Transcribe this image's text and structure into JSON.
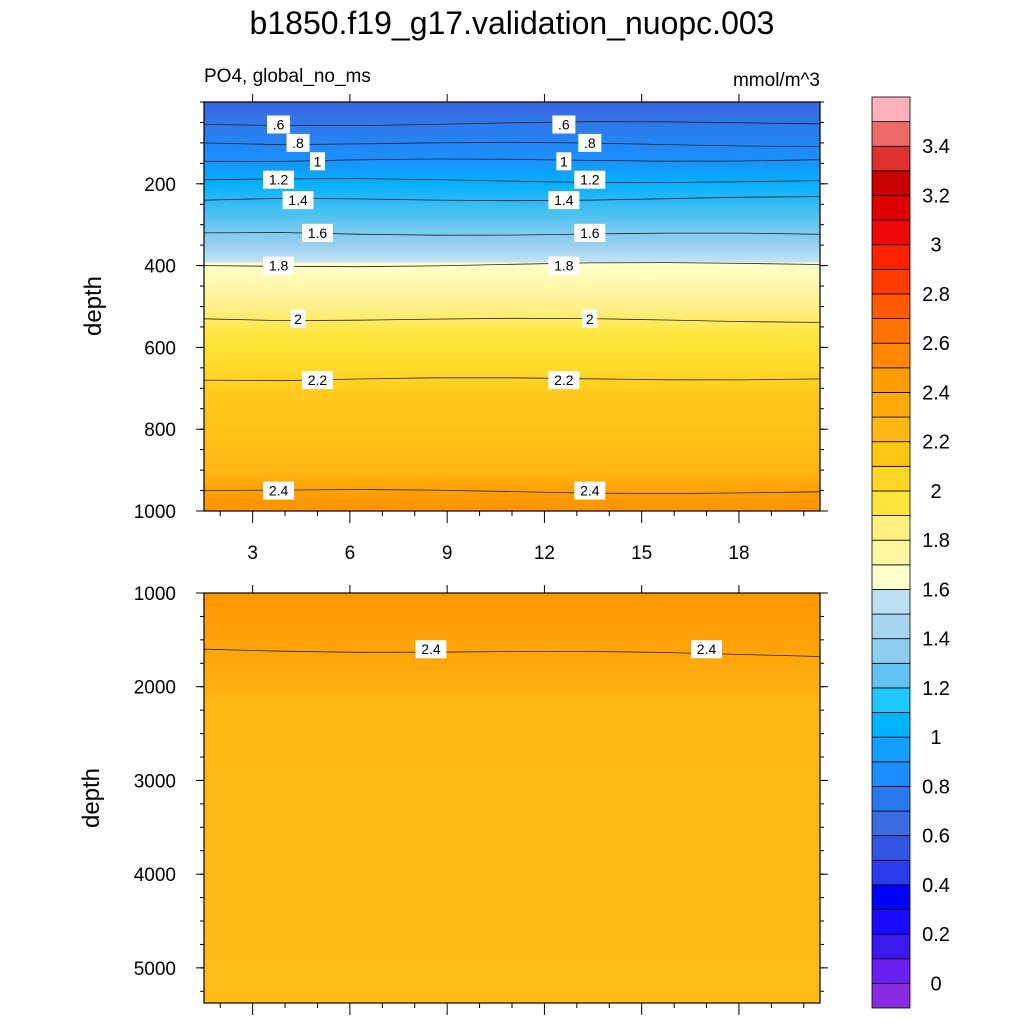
{
  "chart_data": {
    "type": "heatmap",
    "title": "b1850.f19_g17.validation_nuopc.003",
    "subtitle_left": "PO4, global_no_ms",
    "subtitle_right": "mmol/m^3",
    "x_ticks": [
      "3",
      "6",
      "9",
      "12",
      "15",
      "18"
    ],
    "x_tick_values": [
      3,
      6,
      9,
      12,
      15,
      18
    ],
    "xlim": [
      1.5,
      20.5
    ],
    "colorbar": {
      "levels": [
        0,
        0.2,
        0.4,
        0.6,
        0.8,
        1,
        1.2,
        1.4,
        1.6,
        1.8,
        2,
        2.2,
        2.4,
        2.6,
        2.8,
        3,
        3.2,
        3.4
      ],
      "tick_labels": [
        "0",
        "0.2",
        "0.4",
        "0.6",
        "0.8",
        "1",
        "1.2",
        "1.4",
        "1.6",
        "1.8",
        "2",
        "2.2",
        "2.4",
        "2.6",
        "2.8",
        "3",
        "3.2",
        "3.4"
      ],
      "colors": [
        "#8a2be2",
        "#6a1ff0",
        "#3a18ee",
        "#1a0bff",
        "#0000ff",
        "#2a3cee",
        "#3355e6",
        "#3a6be0",
        "#2a78ee",
        "#1e8cff",
        "#12a0ff",
        "#00b4ff",
        "#1ec8ff",
        "#62c3f2",
        "#8ecdee",
        "#a6d4ee",
        "#bce0f2",
        "#ffffcc",
        "#fff6a0",
        "#fff080",
        "#ffe43c",
        "#ffd528",
        "#ffc614",
        "#ffb812",
        "#ffa90a",
        "#ff9c00",
        "#ff8800",
        "#ff7100",
        "#ff5a00",
        "#ff3a00",
        "#ff2200",
        "#ee0808",
        "#dd0000",
        "#c80000",
        "#dd3030",
        "#ee6a6a",
        "#ffb0b8"
      ]
    },
    "panels": [
      {
        "ylabel": "depth",
        "ylim": [
          0,
          1000
        ],
        "y_ticks": [
          "200",
          "400",
          "600",
          "800",
          "1000"
        ],
        "y_tick_values": [
          200,
          400,
          600,
          800,
          1000
        ],
        "contours": [
          {
            "level": 0.6,
            "depth": 55,
            "labels": [
              ".6",
              ".6"
            ]
          },
          {
            "level": 0.8,
            "depth": 100,
            "labels": [
              ".8",
              ".8"
            ]
          },
          {
            "level": 1,
            "depth": 145,
            "labels": [
              "1",
              "1"
            ]
          },
          {
            "level": 1.2,
            "depth": 190,
            "labels": [
              "1.2",
              "1.2"
            ]
          },
          {
            "level": 1.4,
            "depth": 240,
            "labels": [
              "1.4",
              "1.4"
            ]
          },
          {
            "level": 1.6,
            "depth": 320,
            "labels": [
              "1.6",
              "1.6"
            ]
          },
          {
            "level": 1.8,
            "depth": 400,
            "labels": [
              "1.8",
              "1.8"
            ]
          },
          {
            "level": 2,
            "depth": 530,
            "labels": [
              "2",
              "2"
            ]
          },
          {
            "level": 2.2,
            "depth": 680,
            "labels": [
              "2.2",
              "2.2"
            ]
          },
          {
            "level": 2.4,
            "depth": 950,
            "labels": [
              "2.4",
              "2.4"
            ]
          }
        ]
      },
      {
        "ylabel": "depth",
        "ylim": [
          1000,
          5375
        ],
        "y_ticks": [
          "1000",
          "2000",
          "3000",
          "4000",
          "5000"
        ],
        "y_tick_values": [
          1000,
          2000,
          3000,
          4000,
          5000
        ],
        "contours": [
          {
            "level": 2.4,
            "depth": 1600,
            "labels": [
              "2.4",
              "2.4"
            ]
          }
        ]
      }
    ]
  }
}
